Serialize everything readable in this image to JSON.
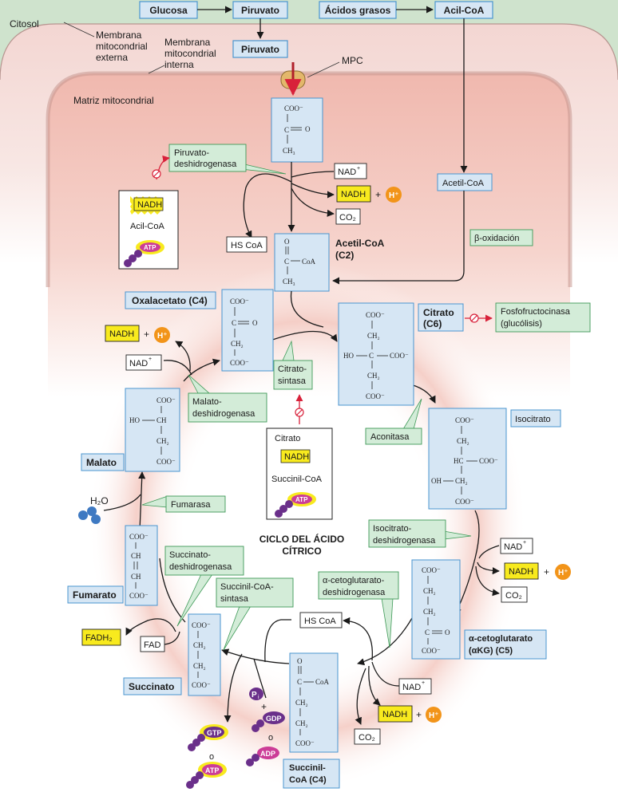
{
  "regions": {
    "cytosol": "Citosol",
    "outer_membrane": "Membrana mitocondrial externa",
    "inner_membrane": "Membrana mitocondrial interna",
    "matrix": "Matriz mitocondrial",
    "transporter": "MPC"
  },
  "top_boxes": {
    "glucose": "Glucosa",
    "pyruvate_cytosol": "Piruvato",
    "fatty_acids": "Ácidos grasos",
    "acyl_coa": "Acil-CoA",
    "pyruvate_membrane": "Piruvato"
  },
  "left_branch": {
    "enzyme_pdh": "Piruvato-deshidrogenasa",
    "inhibitor_nadh": "NADH",
    "inhibitor_acylcoa": "Acil-CoA",
    "inhibitor_atp": "ATP",
    "nad": "NAD+",
    "nadh": "NADH",
    "h": "H+",
    "co2": "CO2",
    "hscoa": "HS CoA",
    "acetyl_coa_label": "Acetil-CoA (C2)",
    "acetyl_coa_matrix": "Acetil-CoA",
    "beta_ox": "β-oxidación"
  },
  "cycle": {
    "title": "CICLO DEL ÁCIDO CÍTRICO",
    "oxaloacetate": "Oxalacetato (C4)",
    "citrate": "Citrato (C6)",
    "pfk": "Fosfofructocinasa (glucólisis)",
    "citrate_synthase": "Citrato-sintasa",
    "inhibitors_center": [
      "Citrato",
      "NADH",
      "Succinil-CoA",
      "ATP"
    ],
    "aconitase": "Aconitasa",
    "isocitrate": "Isocitrato",
    "idh": "Isocitrato-deshidrogenasa",
    "akg_dh": "α-cetoglutarato-deshidrogenasa",
    "akg": "α-cetoglutarato (αKG) (C5)",
    "succinyl_coa": "Succinil-CoA (C4)",
    "succinyl_synthase": "Succinil-CoA-sintasa",
    "succinate": "Succinato",
    "sdh": "Succinato-deshidrogenasa",
    "fumarate": "Fumarato",
    "fumarase": "Fumarasa",
    "malate": "Malato",
    "mdh": "Malato-deshidrogenasa",
    "water": "H2O",
    "fad": "FAD",
    "fadh2": "FADH2",
    "pi": "Pi",
    "gdp": "GDP",
    "adp": "ADP",
    "gtp": "GTP",
    "atp": "ATP",
    "or": "o"
  },
  "colors": {
    "cytosol_bg": "#cfe3cd",
    "membrane_pink": "#ecc3bd",
    "matrix_pink": "#f3cfc8",
    "box_blue": "#d6e6f4",
    "box_border": "#4a95cf",
    "enzyme_green": "#d3ecd8",
    "nadh_yellow": "#f8ea1e",
    "h_orange": "#f29419",
    "atp_magenta": "#cc3d97",
    "inhibit_red": "#d8213a"
  }
}
